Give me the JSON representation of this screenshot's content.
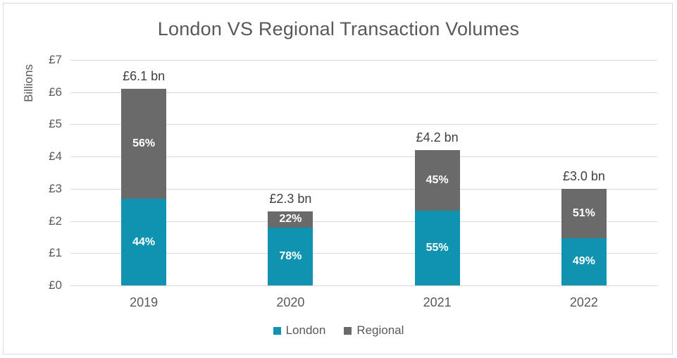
{
  "chart_data": {
    "type": "bar",
    "stacked": true,
    "title": "London VS Regional Transaction Volumes",
    "ylabel": "Billions",
    "xlabel": "",
    "categories": [
      "2019",
      "2020",
      "2021",
      "2022"
    ],
    "series": [
      {
        "name": "London",
        "color": "#1093b0",
        "percent": [
          44,
          78,
          55,
          49
        ],
        "values_bn": [
          2.68,
          1.79,
          2.31,
          1.47
        ],
        "percent_labels": [
          "44%",
          "78%",
          "55%",
          "49%"
        ]
      },
      {
        "name": "Regional",
        "color": "#6a6a6a",
        "percent": [
          56,
          22,
          45,
          51
        ],
        "values_bn": [
          3.42,
          0.51,
          1.89,
          1.53
        ],
        "percent_labels": [
          "56%",
          "22%",
          "45%",
          "51%"
        ]
      }
    ],
    "totals_bn": [
      6.1,
      2.3,
      4.2,
      3.0
    ],
    "total_labels": [
      "£6.1 bn",
      "£2.3 bn",
      "£4.2 bn",
      "£3.0 bn"
    ],
    "y_ticks": [
      "£7",
      "£6",
      "£5",
      "£4",
      "£3",
      "£2",
      "£1",
      "£0"
    ],
    "ylim": [
      0,
      7
    ],
    "grid": true,
    "gridline_color": "#d9d9d9",
    "legend_position": "bottom",
    "legend": [
      {
        "label": "London",
        "color": "#1093b0"
      },
      {
        "label": "Regional",
        "color": "#6a6a6a"
      }
    ],
    "text_colors": {
      "title": "#595959",
      "ticks": "#595959",
      "totals": "#404040",
      "segment_labels": "#ffffff"
    }
  }
}
